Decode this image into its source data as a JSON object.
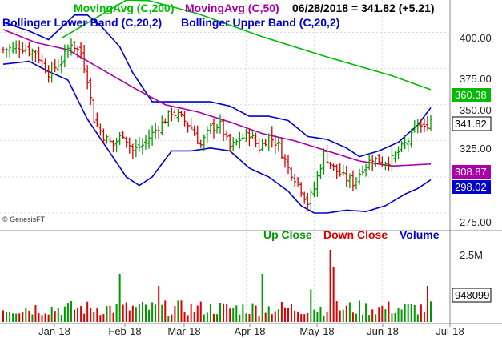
{
  "chart_data": [
    {
      "type": "ohlc",
      "panel": "price",
      "header": {
        "ma200_label": "MovingAvg (C,200)",
        "ma50_label": "MovingAvg (C,50)",
        "quote": "06/28/2018 = 341.82 (+5.21)",
        "bb_lower_label": "Bollinger Lower Band (C,20,2)",
        "bb_upper_label": "Bollinger Upper Band (C,20,2)"
      },
      "y_ticks": [
        "400.00",
        "375.00",
        "350.00",
        "325.00",
        "275.00"
      ],
      "ylim": [
        265,
        418
      ],
      "x_ticks": [
        "Jan-18",
        "Feb-18",
        "Mar-18",
        "Apr-18",
        "May-18",
        "Jun-18",
        "Jul-18"
      ],
      "badges": {
        "ma200": "360.38",
        "last": "341.82",
        "ma50": "308.87",
        "bb_lower": "298.02"
      },
      "watermark": "© GenesisFT",
      "colors": {
        "up": "#009900",
        "down": "#dd0000",
        "ma200": "#00bb00",
        "ma50": "#aa00aa",
        "bollinger": "#0000cc"
      },
      "close_anchors": [
        [
          0,
          388
        ],
        [
          5,
          390
        ],
        [
          10,
          386
        ],
        [
          14,
          372
        ],
        [
          18,
          380
        ],
        [
          21,
          393
        ],
        [
          24,
          385
        ],
        [
          26,
          368
        ],
        [
          28,
          340
        ],
        [
          31,
          328
        ],
        [
          34,
          322
        ],
        [
          37,
          330
        ],
        [
          40,
          318
        ],
        [
          43,
          322
        ],
        [
          46,
          330
        ],
        [
          49,
          337
        ],
        [
          52,
          345
        ],
        [
          55,
          341
        ],
        [
          58,
          334
        ],
        [
          61,
          322
        ],
        [
          64,
          334
        ],
        [
          67,
          336
        ],
        [
          70,
          320
        ],
        [
          73,
          326
        ],
        [
          76,
          330
        ],
        [
          79,
          320
        ],
        [
          82,
          328
        ],
        [
          85,
          322
        ],
        [
          88,
          306
        ],
        [
          91,
          296
        ],
        [
          94,
          282
        ],
        [
          96,
          292
        ],
        [
          99,
          316
        ],
        [
          102,
          306
        ],
        [
          105,
          300
        ],
        [
          108,
          296
        ],
        [
          111,
          306
        ],
        [
          114,
          313
        ],
        [
          117,
          310
        ],
        [
          120,
          312
        ],
        [
          123,
          320
        ],
        [
          126,
          328
        ],
        [
          128,
          337
        ],
        [
          130,
          333
        ],
        [
          132,
          340
        ]
      ],
      "ma50_anchors": [
        [
          0,
          402
        ],
        [
          10,
          393
        ],
        [
          20,
          388
        ],
        [
          30,
          375
        ],
        [
          40,
          362
        ],
        [
          50,
          350
        ],
        [
          60,
          345
        ],
        [
          70,
          338
        ],
        [
          80,
          330
        ],
        [
          90,
          325
        ],
        [
          100,
          318
        ],
        [
          110,
          311
        ],
        [
          120,
          307.5
        ],
        [
          132,
          308.9
        ]
      ],
      "ma200_anchors": [
        [
          18,
          396
        ],
        [
          40,
          425
        ],
        [
          60,
          413
        ],
        [
          80,
          397
        ],
        [
          100,
          383
        ],
        [
          120,
          370
        ],
        [
          132,
          360.4
        ]
      ],
      "bb_upper_anchors": [
        [
          0,
          407
        ],
        [
          8,
          401
        ],
        [
          14,
          395
        ],
        [
          22,
          412
        ],
        [
          26,
          412
        ],
        [
          30,
          405
        ],
        [
          36,
          390
        ],
        [
          40,
          372
        ],
        [
          46,
          352
        ],
        [
          52,
          352
        ],
        [
          58,
          352
        ],
        [
          64,
          352
        ],
        [
          70,
          349
        ],
        [
          76,
          342
        ],
        [
          82,
          342
        ],
        [
          88,
          339
        ],
        [
          94,
          328
        ],
        [
          100,
          326
        ],
        [
          106,
          320
        ],
        [
          110,
          314
        ],
        [
          116,
          318
        ],
        [
          122,
          324
        ],
        [
          128,
          336
        ],
        [
          132,
          348
        ]
      ],
      "bb_lower_anchors": [
        [
          0,
          378
        ],
        [
          8,
          380
        ],
        [
          14,
          373
        ],
        [
          20,
          367
        ],
        [
          26,
          340
        ],
        [
          32,
          320
        ],
        [
          38,
          300
        ],
        [
          42,
          294
        ],
        [
          46,
          300
        ],
        [
          52,
          318
        ],
        [
          58,
          318
        ],
        [
          64,
          320
        ],
        [
          70,
          318
        ],
        [
          76,
          306
        ],
        [
          82,
          300
        ],
        [
          88,
          290
        ],
        [
          92,
          280
        ],
        [
          96,
          275
        ],
        [
          100,
          275
        ],
        [
          106,
          277
        ],
        [
          112,
          276
        ],
        [
          118,
          280
        ],
        [
          124,
          288
        ],
        [
          128,
          292
        ],
        [
          132,
          298
        ]
      ]
    },
    {
      "type": "bar",
      "panel": "volume",
      "legend": {
        "up": "Up Close",
        "down": "Down Close",
        "volume": "Volume"
      },
      "y_ticks": [
        "2.5M"
      ],
      "ylim": [
        0,
        3200000
      ],
      "last_volume": "948099",
      "spikes": [
        [
          36,
          2000000
        ],
        [
          48,
          1500000
        ],
        [
          80,
          2000000
        ],
        [
          95,
          1350000
        ],
        [
          101,
          3000000
        ],
        [
          102,
          2300000
        ],
        [
          131,
          1500000
        ]
      ]
    }
  ]
}
